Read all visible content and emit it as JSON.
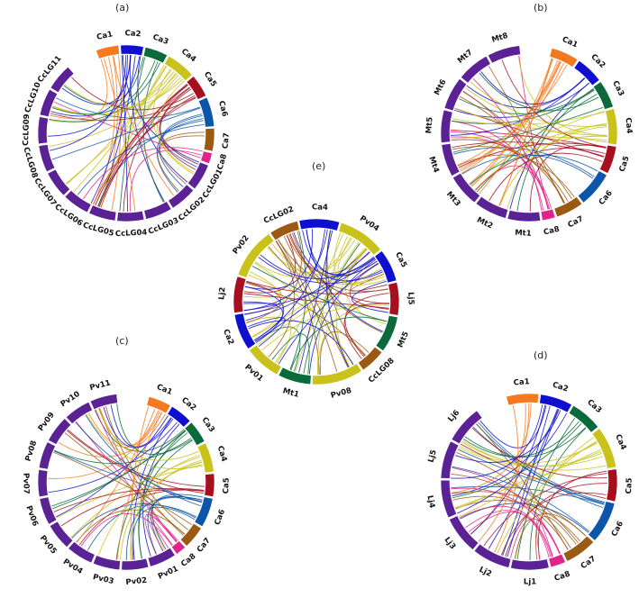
{
  "colors": {
    "ca1": "#f47920",
    "ca2": "#0f0fcf",
    "ca3": "#0a6a3a",
    "ca4": "#c9c21a",
    "ca5": "#a50f1e",
    "ca6": "#0c55a8",
    "ca7": "#9b5a13",
    "ca8": "#e0258a",
    "other": "#5b2295"
  },
  "panels": [
    {
      "label": "(a)",
      "chromosomes": [
        {
          "name": "Ca1",
          "color": "ca1"
        },
        {
          "name": "Ca2",
          "color": "ca2"
        },
        {
          "name": "Ca3",
          "color": "ca3"
        },
        {
          "name": "Ca4",
          "color": "ca4"
        },
        {
          "name": "Ca5",
          "color": "ca5"
        },
        {
          "name": "Ca6",
          "color": "ca6"
        },
        {
          "name": "Ca7",
          "color": "ca7"
        },
        {
          "name": "Ca8",
          "color": "ca8"
        },
        {
          "name": "CcLG01",
          "color": "other"
        },
        {
          "name": "CcLG02",
          "color": "other"
        },
        {
          "name": "CcLG03",
          "color": "other"
        },
        {
          "name": "CcLG04",
          "color": "other"
        },
        {
          "name": "CcLG05",
          "color": "other"
        },
        {
          "name": "CcLG06",
          "color": "other"
        },
        {
          "name": "CcLG07",
          "color": "other"
        },
        {
          "name": "CcLG08",
          "color": "other"
        },
        {
          "name": "CcLG09",
          "color": "other"
        },
        {
          "name": "CcLG10",
          "color": "other"
        },
        {
          "name": "CcLG11",
          "color": "other"
        }
      ]
    },
    {
      "label": "(b)",
      "chromosomes": [
        {
          "name": "Ca1",
          "color": "ca1"
        },
        {
          "name": "Ca2",
          "color": "ca2"
        },
        {
          "name": "Ca3",
          "color": "ca3"
        },
        {
          "name": "Ca4",
          "color": "ca4"
        },
        {
          "name": "Ca5",
          "color": "ca5"
        },
        {
          "name": "Ca6",
          "color": "ca6"
        },
        {
          "name": "Ca7",
          "color": "ca7"
        },
        {
          "name": "Ca8",
          "color": "ca8"
        },
        {
          "name": "Mt1",
          "color": "other"
        },
        {
          "name": "Mt2",
          "color": "other"
        },
        {
          "name": "Mt3",
          "color": "other"
        },
        {
          "name": "Mt4",
          "color": "other"
        },
        {
          "name": "Mt5",
          "color": "other"
        },
        {
          "name": "Mt6",
          "color": "other"
        },
        {
          "name": "Mt7",
          "color": "other"
        },
        {
          "name": "Mt8",
          "color": "other"
        }
      ]
    },
    {
      "label": "(c)",
      "chromosomes": [
        {
          "name": "Ca1",
          "color": "ca1"
        },
        {
          "name": "Ca2",
          "color": "ca2"
        },
        {
          "name": "Ca3",
          "color": "ca3"
        },
        {
          "name": "Ca4",
          "color": "ca4"
        },
        {
          "name": "Ca5",
          "color": "ca5"
        },
        {
          "name": "Ca6",
          "color": "ca6"
        },
        {
          "name": "Ca7",
          "color": "ca7"
        },
        {
          "name": "Ca8",
          "color": "ca8"
        },
        {
          "name": "Pv01",
          "color": "other"
        },
        {
          "name": "Pv02",
          "color": "other"
        },
        {
          "name": "Pv03",
          "color": "other"
        },
        {
          "name": "Pv04",
          "color": "other"
        },
        {
          "name": "Pv05",
          "color": "other"
        },
        {
          "name": "Pv06",
          "color": "other"
        },
        {
          "name": "Pv07",
          "color": "other"
        },
        {
          "name": "Pv08",
          "color": "other"
        },
        {
          "name": "Pv09",
          "color": "other"
        },
        {
          "name": "Pv10",
          "color": "other"
        },
        {
          "name": "Pv11",
          "color": "other"
        }
      ]
    },
    {
      "label": "(d)",
      "chromosomes": [
        {
          "name": "Ca1",
          "color": "ca1"
        },
        {
          "name": "Ca2",
          "color": "ca2"
        },
        {
          "name": "Ca3",
          "color": "ca3"
        },
        {
          "name": "Ca4",
          "color": "ca4"
        },
        {
          "name": "Ca5",
          "color": "ca5"
        },
        {
          "name": "Ca6",
          "color": "ca6"
        },
        {
          "name": "Ca7",
          "color": "ca7"
        },
        {
          "name": "Ca8",
          "color": "ca8"
        },
        {
          "name": "Lj1",
          "color": "other"
        },
        {
          "name": "Lj2",
          "color": "other"
        },
        {
          "name": "Lj3",
          "color": "other"
        },
        {
          "name": "Lj4",
          "color": "other"
        },
        {
          "name": "Lj5",
          "color": "other"
        },
        {
          "name": "Lj6",
          "color": "other"
        }
      ]
    },
    {
      "label": "(e)",
      "chromosomes": [
        {
          "name": "Ca4",
          "color": "ca2"
        },
        {
          "name": "Pv04",
          "color": "ca4"
        },
        {
          "name": "Ca5",
          "color": "ca2"
        },
        {
          "name": "Lj5",
          "color": "ca5"
        },
        {
          "name": "Mt5",
          "color": "ca3"
        },
        {
          "name": "CcLG08",
          "color": "ca7"
        },
        {
          "name": "Pv08",
          "color": "ca4"
        },
        {
          "name": "Mt1",
          "color": "ca3"
        },
        {
          "name": "Pv01",
          "color": "ca4"
        },
        {
          "name": "Ca2",
          "color": "ca2"
        },
        {
          "name": "Lj2",
          "color": "ca5"
        },
        {
          "name": "Pv02",
          "color": "ca4"
        },
        {
          "name": "CcLG02",
          "color": "ca7"
        }
      ]
    }
  ]
}
